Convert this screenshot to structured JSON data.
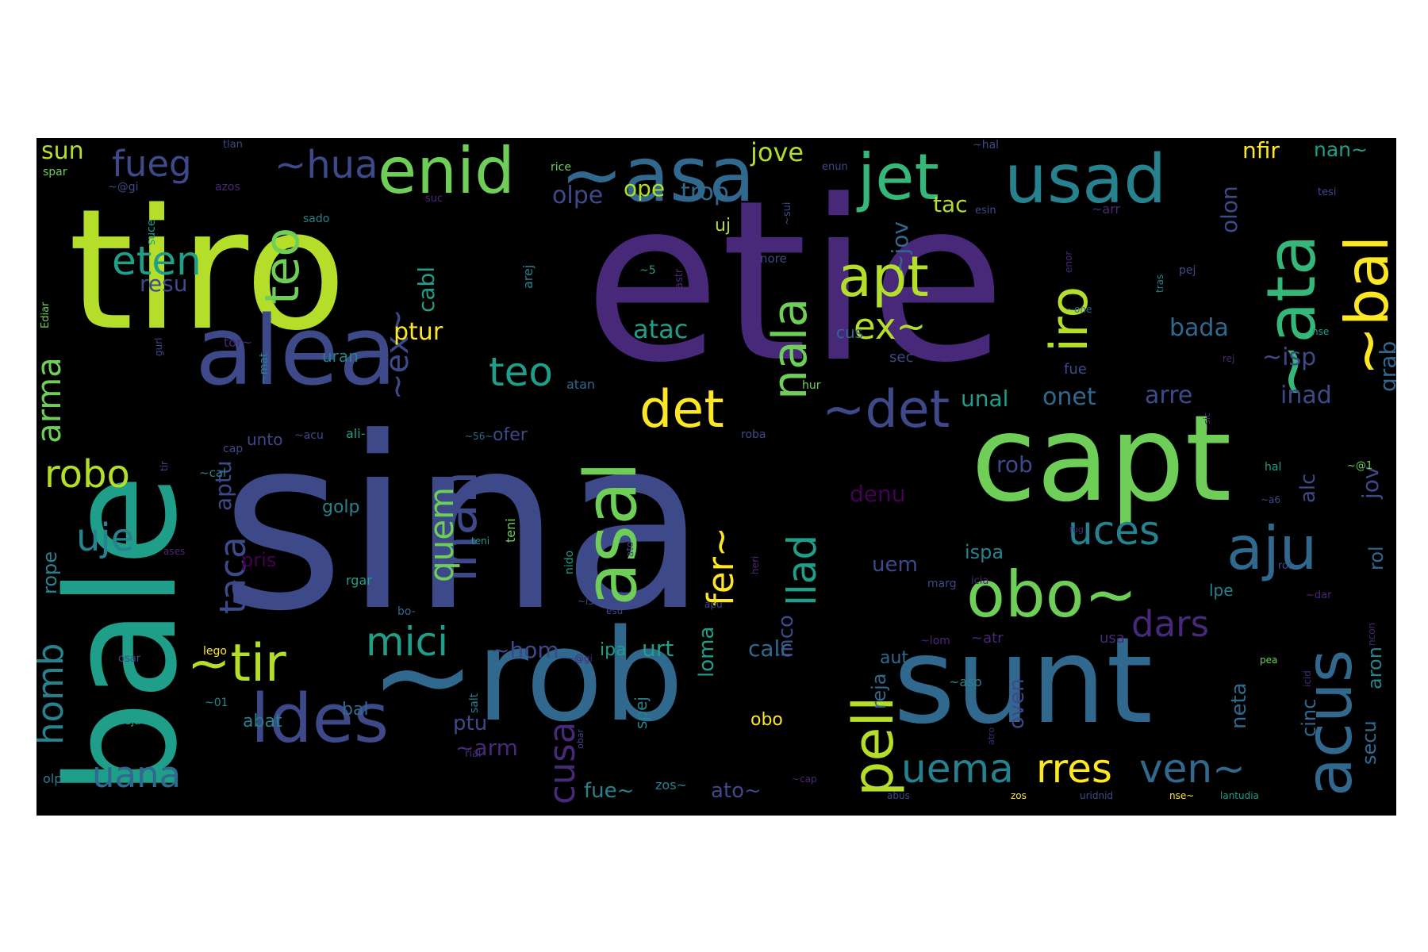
{
  "wordcloud": {
    "words": {
      "sina": "sina",
      "etie": "etie",
      "tiro": "tiro",
      "bale": "bale",
      "rob": "~rob",
      "sunt": "sunt",
      "capt": "capt",
      "alea": "alea",
      "asa_top": "~asa",
      "enid": "enid",
      "jet": "jet",
      "usad": "usad",
      "ata": "~ata",
      "bal_v": "~bal",
      "asal": "asal",
      "obo": "obo~",
      "aju": "aju",
      "acus": "acus",
      "ldes": "ldes",
      "pell": "pell",
      "apt": "apt",
      "det1": "det",
      "det2": "~det",
      "nala": "nala",
      "iro": "iro",
      "inan": "inan",
      "tir": "~tir",
      "teo_v": "teo",
      "teo": "teo",
      "hua": "~hua",
      "fueg": "fueg",
      "eten": "eten",
      "uana": "uana",
      "uema": "uema",
      "rres": "rres",
      "ven": "ven~",
      "uces": "uces",
      "mici": "mici",
      "dars": "dars",
      "robo": "robo",
      "uje": "uje",
      "homb": "homb",
      "arma": "arma",
      "taca": "taca",
      "cusa": "cusa",
      "quem": "quem",
      "llad": "llad",
      "fer": "fer~",
      "ex1": "ex~",
      "ex2": "~ex~",
      "jove": "jove",
      "trop": "trop",
      "olpe": "olpe",
      "ope": "ope",
      "sun": "sun",
      "tac": "tac",
      "jov1": "~jov",
      "olon": "olon",
      "nfir": "nfir",
      "nan": "nan~",
      "ptur": "ptur",
      "atac": "atac",
      "bada": "bada",
      "isp": "~isp",
      "grab": "grab",
      "inad": "inad",
      "arre": "arre",
      "onet": "onet",
      "unal": "unal",
      "resu": "resu",
      "cabl": "cabl",
      "aptu": "aptu",
      "denu": "denu",
      "rob2": "rob",
      "alc": "alc",
      "jov2": "jov",
      "rol": "rol",
      "secu": "secu",
      "aron": "aron",
      "ncon": "ncon",
      "cinc": "cinc",
      "neta": "neta",
      "oven": "oven",
      "ispa": "ispa",
      "uem": "uem",
      "inco": "inco",
      "loma": "loma",
      "calc": "calc",
      "urt": "urt",
      "ipa": "ipa",
      "hom": "~hom",
      "arm": "~arm",
      "ptu": "ptu",
      "abat": "abat",
      "bal2": "bal",
      "reja": "reja",
      "aut": "aut",
      "golp": "golp",
      "ofer": "ofer",
      "unto": "unto",
      "uran": "uran",
      "fue": "fue",
      "sec": "sec",
      "cus": "cus",
      "spej": "spej",
      "obo2": "obo",
      "fue2": "fue~",
      "ato": "ato~",
      "zos": "zos~",
      "pris": "pris",
      "rope": "rope",
      "olp": "olp",
      "uj": "uj",
      "nore": "nore",
      "arej": "arej",
      "ali": "ali-",
      "tor": "tor~",
      "mat": "~mat",
      "hur": "hur",
      "cal": "~cal",
      "cap": "cap",
      "atan": "atan",
      "spar": "spar",
      "gi": "~@gi",
      "azos": "azos",
      "suce": "suce",
      "tlan": "tlan",
      "rice": "rice",
      "enun": "enun",
      "sui": "~sui",
      "suc": "suc",
      "esin": "esin",
      "arr": "~arr",
      "hal": "~hal",
      "tesi": "tesi",
      "pej": "pej",
      "tras": "tras",
      "sado": "sado",
      "astr": "astr",
      "acu": "~acu",
      "roba": "roba",
      "marg": "marg",
      "icia": "icia",
      "nido": "nido",
      "apun": "apun",
      "teni": "teni",
      "heri": "heri",
      "esu": "esu",
      "rgar": "rgar",
      "bo": "bo-",
      "lpe": "lpe",
      "lom": "~lom",
      "atr": "~atr",
      "usa": "usa",
      "asp": "~asp",
      "ediar": "Ediar",
      "gurl": "gurl",
      "osar": "osar",
      "sja": "sja",
      "salt": "salt",
      "obar": "obar",
      "rial": "rial",
      "cap2": "~cap",
      "abus": "abus",
      "zos2": "zos",
      "uridnid": "uridnid",
      "nse": "nse~",
      "lantudia": "lantudia",
      "lego": "lego",
      "o1": "~01",
      "gi2": "~@gi",
      "rol2": "rol",
      "dar": "~dar",
      "ncon2": "ncon",
      "hal2": "hal",
      "sic": "~sic",
      "rej": "rej",
      "nse2": "nse",
      "ases": "ases",
      "s": "~5",
      "is": "~i5-",
      "atro": "atro",
      "icid": "icid",
      "pea": "pea",
      "fug": "fug",
      "gi3": "~@1",
      "aa": "~a6",
      "dd": "~56~",
      "tir2": "tir",
      "teni2": "teni",
      "apu": "apu",
      "enor": "enor",
      "ato2": "ato",
      "one": "~one"
    }
  }
}
